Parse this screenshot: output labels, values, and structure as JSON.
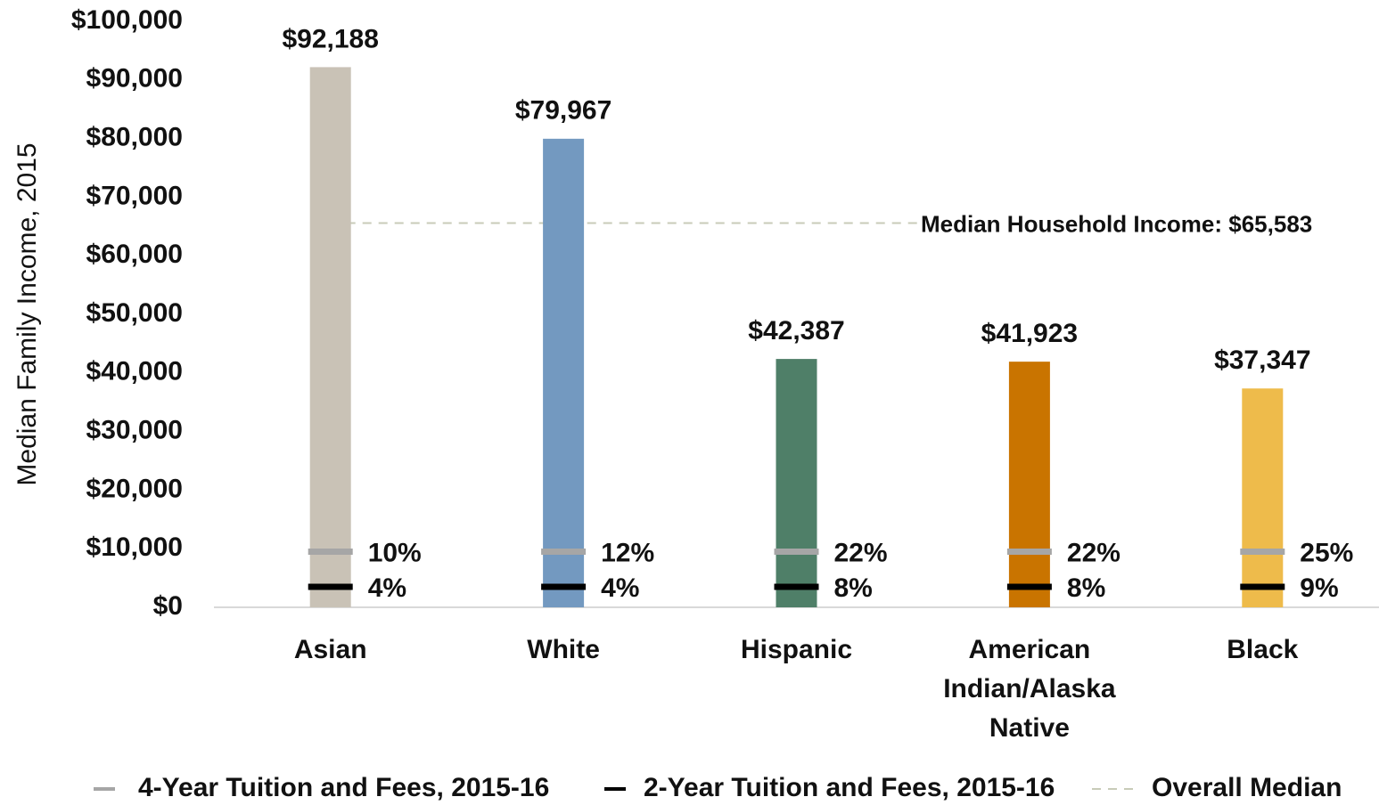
{
  "chart_data": {
    "type": "bar",
    "y_axis_label": "Median Family Income, 2015",
    "categories": [
      "Asian",
      "White",
      "Hispanic",
      "American Indian/Alaska Native",
      "Black"
    ],
    "values": [
      92188,
      79967,
      42387,
      41923,
      37347
    ],
    "value_labels": [
      "$92,188",
      "$79,967",
      "$42,387",
      "$41,923",
      "$37,347"
    ],
    "colors": [
      "#c9c2b6",
      "#7399c0",
      "#4f7f68",
      "#c97400",
      "#eebb4b"
    ],
    "ylim": [
      0,
      100000
    ],
    "yticks": [
      {
        "value": 0,
        "label": "$0"
      },
      {
        "value": 10000,
        "label": "$10,000"
      },
      {
        "value": 20000,
        "label": "$20,000"
      },
      {
        "value": 30000,
        "label": "$30,000"
      },
      {
        "value": 40000,
        "label": "$40,000"
      },
      {
        "value": 50000,
        "label": "$50,000"
      },
      {
        "value": 60000,
        "label": "$60,000"
      },
      {
        "value": 70000,
        "label": "$70,000"
      },
      {
        "value": 80000,
        "label": "$80,000"
      },
      {
        "value": 90000,
        "label": "$90,000"
      },
      {
        "value": 100000,
        "label": "$100,000"
      }
    ],
    "markers": [
      {
        "name": "4-Year Tuition and Fees, 2015-16",
        "color": "#a6a6a6",
        "values": [
          9500,
          9500,
          9500,
          9500,
          9500
        ],
        "labels": [
          "10%",
          "12%",
          "22%",
          "22%",
          "25%"
        ]
      },
      {
        "name": "2-Year Tuition and Fees, 2015-16",
        "color": "#000000",
        "values": [
          3500,
          3500,
          3500,
          3500,
          3500
        ],
        "labels": [
          "4%",
          "4%",
          "8%",
          "8%",
          "9%"
        ]
      }
    ],
    "reference_line": {
      "name": "Overall Median",
      "value": 65583,
      "label": "Median Household Income: $65,583",
      "color": "#c8cbb8"
    }
  }
}
